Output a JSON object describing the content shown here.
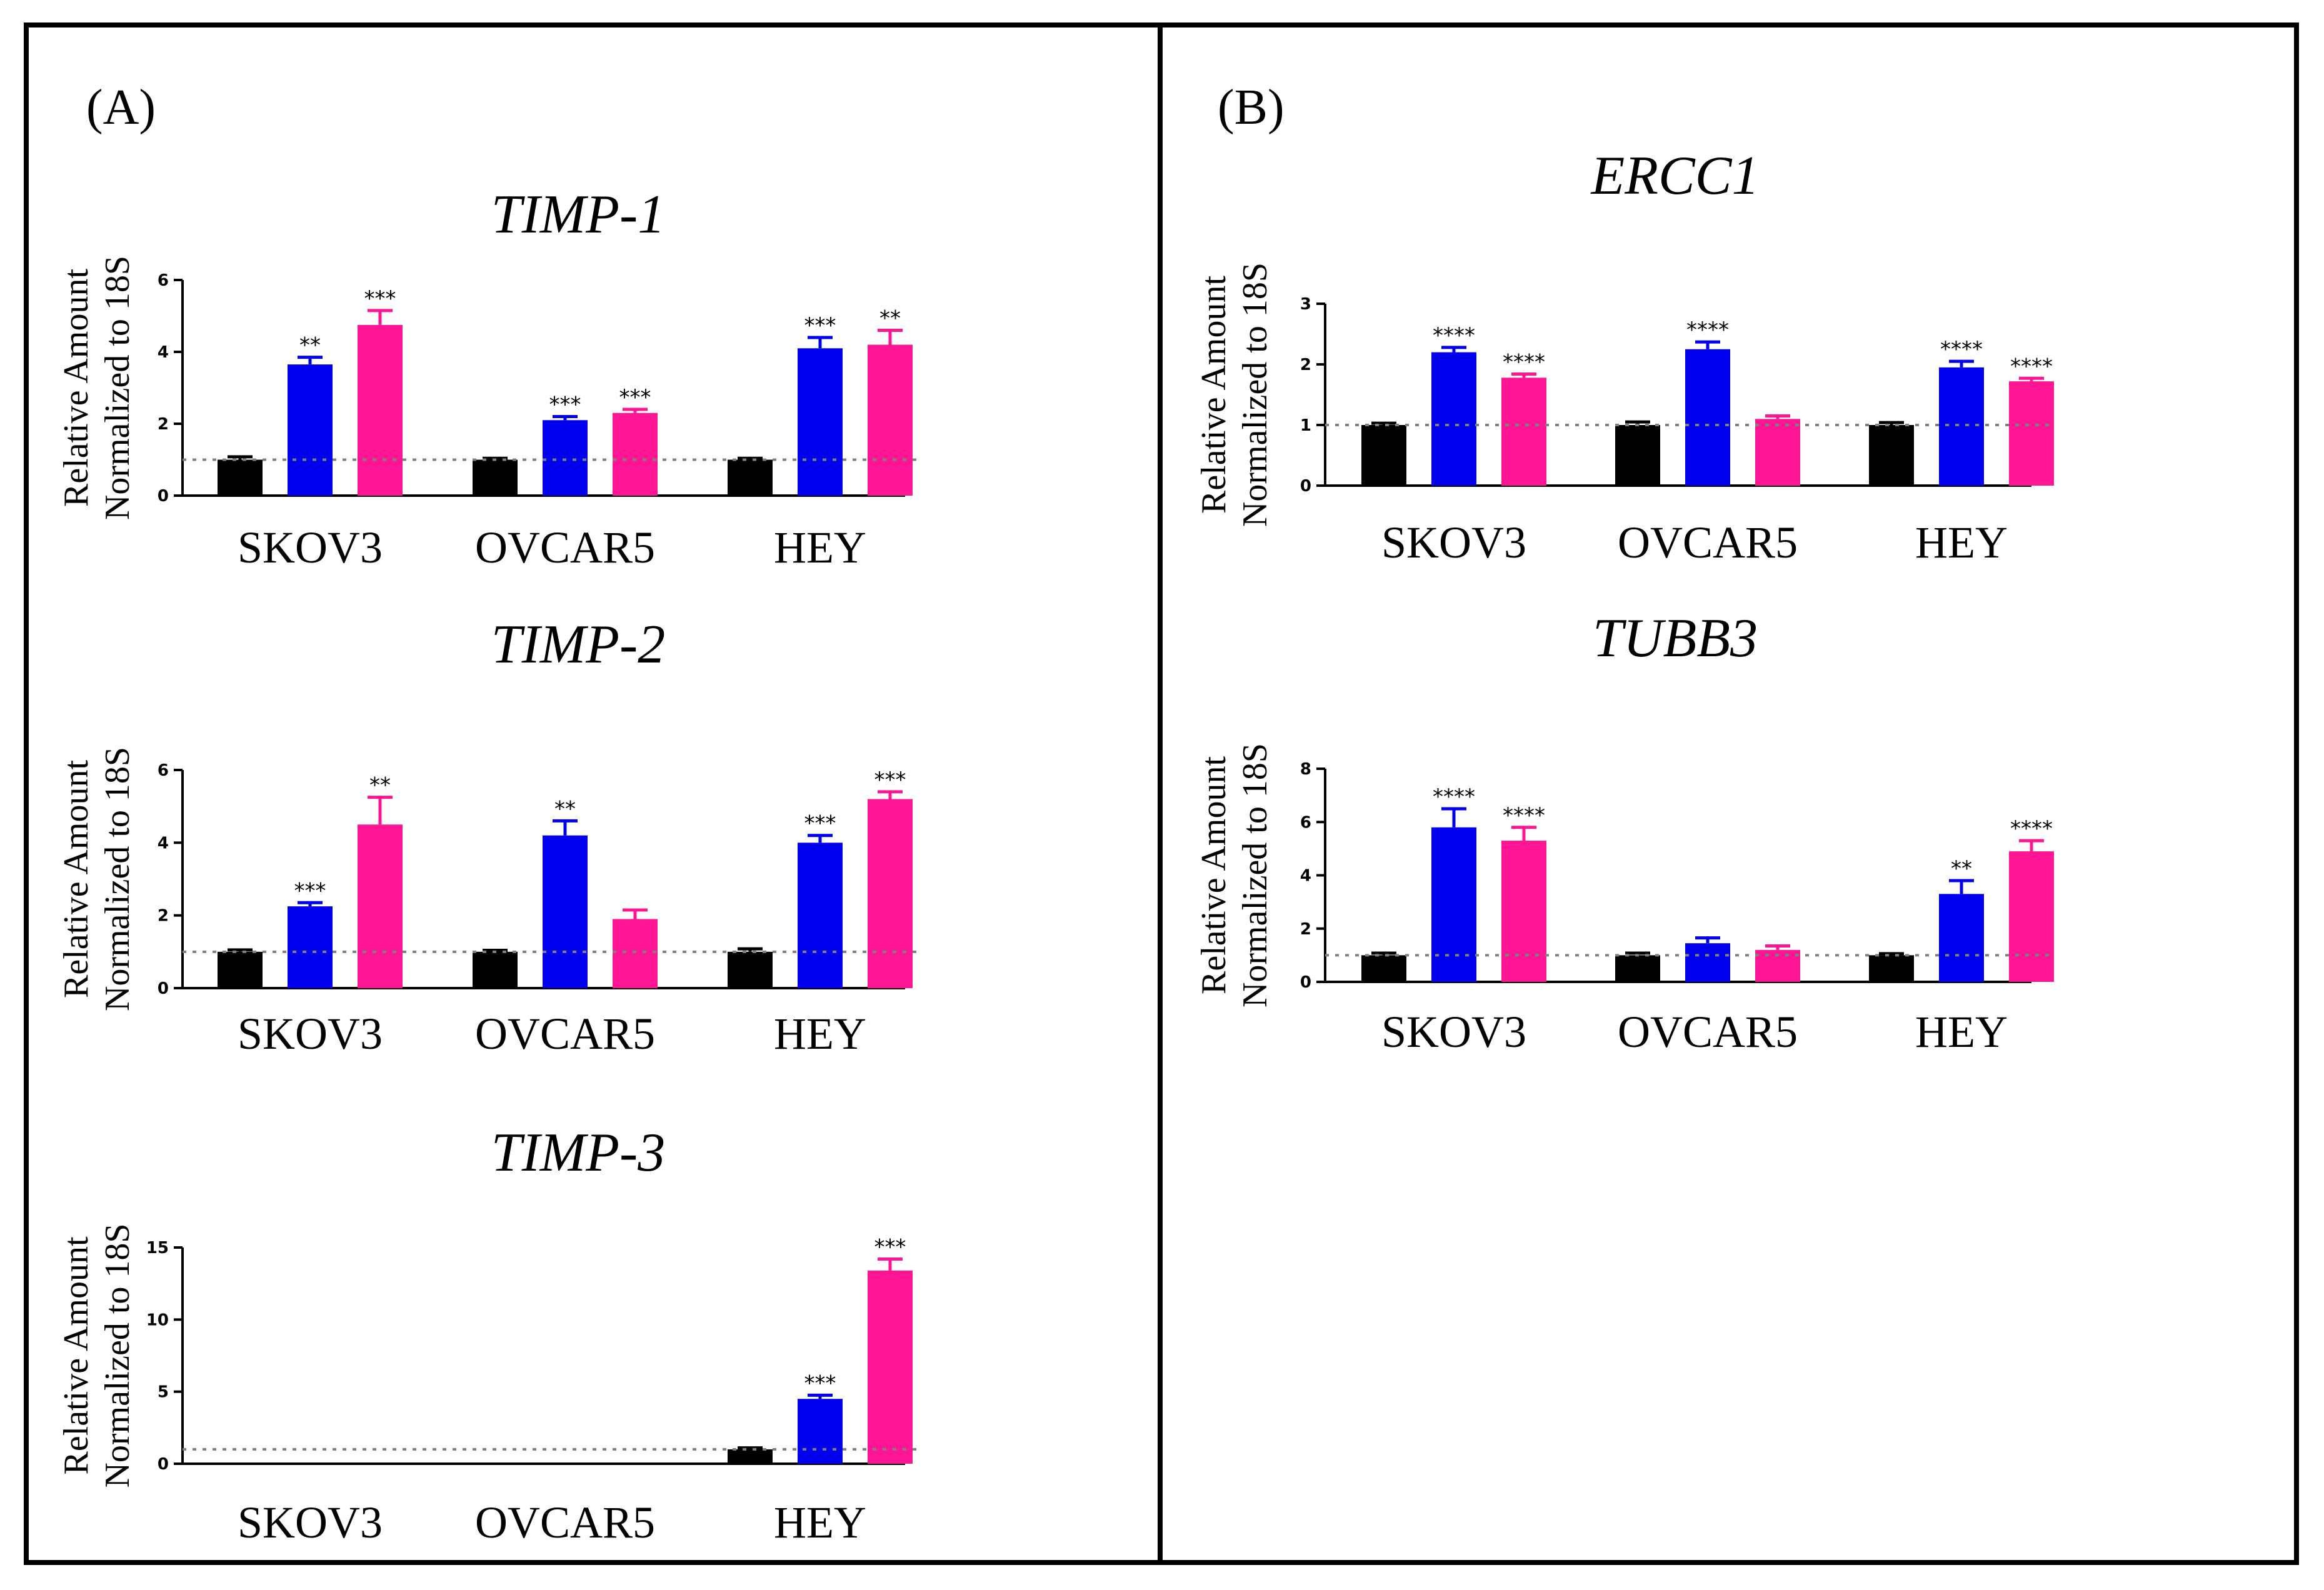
{
  "panels": [
    {
      "label": "(A)"
    },
    {
      "label": "(B)"
    }
  ],
  "colors": {
    "control": "#000000",
    "blue": "#0000ee",
    "pink": "#ff1493",
    "reference_line": "#808080"
  },
  "chart_data": [
    {
      "type": "bar",
      "panel": "(A)",
      "title": "TIMP-1",
      "ylabel_line1": "Relative Amount",
      "ylabel_line2": "Normalized to 18S",
      "categories": [
        "SKOV3",
        "OVCAR5",
        "HEY"
      ],
      "ylim": [
        0,
        6
      ],
      "yticks": [
        "0",
        "2",
        "4",
        "6"
      ],
      "reference_line": 1,
      "series": [
        {
          "name": "control",
          "values": [
            1.0,
            1.0,
            1.0
          ],
          "errors": [
            0.08,
            0.04,
            0.04
          ],
          "stars": [
            "",
            "",
            ""
          ]
        },
        {
          "name": "blue",
          "values": [
            3.65,
            2.1,
            4.1
          ],
          "errors": [
            0.2,
            0.1,
            0.3
          ],
          "stars": [
            "**",
            "***",
            "***"
          ]
        },
        {
          "name": "pink",
          "values": [
            4.75,
            2.3,
            4.2
          ],
          "errors": [
            0.4,
            0.1,
            0.4
          ],
          "stars": [
            "***",
            "***",
            "**"
          ]
        }
      ]
    },
    {
      "type": "bar",
      "panel": "(A)",
      "title": "TIMP-2",
      "ylabel_line1": "Relative Amount",
      "ylabel_line2": "Normalized to 18S",
      "categories": [
        "SKOV3",
        "OVCAR5",
        "HEY"
      ],
      "ylim": [
        0,
        6
      ],
      "yticks": [
        "0",
        "2",
        "4",
        "6"
      ],
      "reference_line": 1,
      "series": [
        {
          "name": "control",
          "values": [
            1.0,
            1.0,
            1.0
          ],
          "errors": [
            0.05,
            0.04,
            0.08
          ],
          "stars": [
            "",
            "",
            ""
          ]
        },
        {
          "name": "blue",
          "values": [
            2.25,
            4.2,
            4.0
          ],
          "errors": [
            0.1,
            0.4,
            0.2
          ],
          "stars": [
            "***",
            "**",
            "***"
          ]
        },
        {
          "name": "pink",
          "values": [
            4.5,
            1.9,
            5.2
          ],
          "errors": [
            0.75,
            0.25,
            0.2
          ],
          "stars": [
            "**",
            "",
            "***"
          ]
        }
      ]
    },
    {
      "type": "bar",
      "panel": "(A)",
      "title": "TIMP-3",
      "ylabel_line1": "Relative Amount",
      "ylabel_line2": "Normalized to 18S",
      "categories": [
        "SKOV3",
        "OVCAR5",
        "HEY"
      ],
      "ylim": [
        0,
        15
      ],
      "yticks": [
        "0",
        "5",
        "10",
        "15"
      ],
      "reference_line": 1,
      "series": [
        {
          "name": "control",
          "values": [
            null,
            null,
            1.0
          ],
          "errors": [
            0,
            0,
            0.1
          ],
          "stars": [
            "",
            "",
            ""
          ]
        },
        {
          "name": "blue",
          "values": [
            null,
            null,
            4.5
          ],
          "errors": [
            0,
            0,
            0.25
          ],
          "stars": [
            "",
            "",
            "***"
          ]
        },
        {
          "name": "pink",
          "values": [
            null,
            null,
            13.4
          ],
          "errors": [
            0,
            0,
            0.8
          ],
          "stars": [
            "",
            "",
            "***"
          ]
        }
      ]
    },
    {
      "type": "bar",
      "panel": "(B)",
      "title": "ERCC1",
      "ylabel_line1": "Relative Amount",
      "ylabel_line2": "Normalized to 18S",
      "categories": [
        "SKOV3",
        "OVCAR5",
        "HEY"
      ],
      "ylim": [
        0,
        3
      ],
      "yticks": [
        "0",
        "1",
        "2",
        "3"
      ],
      "reference_line": 1,
      "series": [
        {
          "name": "control",
          "values": [
            1.0,
            1.0,
            1.0
          ],
          "errors": [
            0.03,
            0.05,
            0.04
          ],
          "stars": [
            "",
            "",
            ""
          ]
        },
        {
          "name": "blue",
          "values": [
            2.2,
            2.25,
            1.95
          ],
          "errors": [
            0.08,
            0.12,
            0.1
          ],
          "stars": [
            "****",
            "****",
            "****"
          ]
        },
        {
          "name": "pink",
          "values": [
            1.78,
            1.1,
            1.72
          ],
          "errors": [
            0.06,
            0.05,
            0.05
          ],
          "stars": [
            "****",
            "",
            "****"
          ]
        }
      ]
    },
    {
      "type": "bar",
      "panel": "(B)",
      "title": "TUBB3",
      "ylabel_line1": "Relative Amount",
      "ylabel_line2": "Normalized to 18S",
      "categories": [
        "SKOV3",
        "OVCAR5",
        "HEY"
      ],
      "ylim": [
        0,
        8
      ],
      "yticks": [
        "0",
        "2",
        "4",
        "6",
        "8"
      ],
      "reference_line": 1,
      "series": [
        {
          "name": "control",
          "values": [
            1.0,
            1.0,
            1.0
          ],
          "errors": [
            0.08,
            0.08,
            0.06
          ],
          "stars": [
            "",
            "",
            ""
          ]
        },
        {
          "name": "blue",
          "values": [
            5.8,
            1.45,
            3.3
          ],
          "errors": [
            0.7,
            0.2,
            0.5
          ],
          "stars": [
            "****",
            "",
            "**"
          ]
        },
        {
          "name": "pink",
          "values": [
            5.3,
            1.2,
            4.9
          ],
          "errors": [
            0.5,
            0.15,
            0.4
          ],
          "stars": [
            "****",
            "",
            "****"
          ]
        }
      ]
    }
  ]
}
